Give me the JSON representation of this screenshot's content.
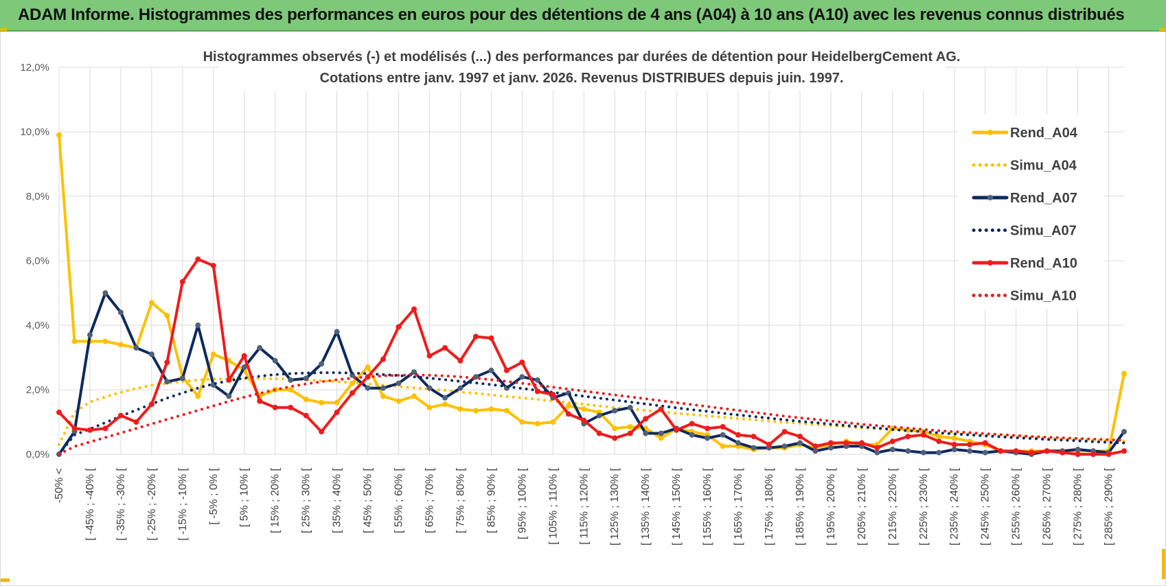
{
  "header": {
    "title": "ADAM Informe. Histogrammes des performances en euros pour des détentions de 4 ans (A04) à 10 ans (A10) avec les revenus connus distribués"
  },
  "chart_data": {
    "type": "line",
    "title": "Histogrammes observés (-) et modélisés (...) des performances par durées de détention pour HeidelbergCement AG.",
    "subtitle": "Cotations entre janv. 1997 et janv. 2026. Revenus DISTRIBUES depuis juin. 1997.",
    "ylim": [
      0,
      12
    ],
    "yticks": [
      "0,0%",
      "2,0%",
      "4,0%",
      "6,0%",
      "8,0%",
      "10,0%",
      "12,0%"
    ],
    "xlabels": [
      "-50% <",
      "[ -45% ; -40% [",
      "[ -35% ; -30% [",
      "[ -25% ; -20% [",
      "[ -15% ; -10% [",
      "[ -5% ; 0% [",
      "[ 5% ; 10% [",
      "[ 15% ; 20% [",
      "[ 25% ; 30% [",
      "[ 35% ; 40% [",
      "[ 45% ; 50% [",
      "[ 55% ; 60% [",
      "[ 65% ; 70% [",
      "[ 75% ; 80% [",
      "[ 85% ; 90% [",
      "[ 95% ; 100% [",
      "[ 105% ; 110% [",
      "[ 115% ; 120% [",
      "[ 125% ; 130% [",
      "[ 135% ; 140% [",
      "[ 145% ; 150% [",
      "[ 155% ; 160% [",
      "[ 165% ; 170% [",
      "[ 175% ; 180% [",
      "[ 185% ; 190% [",
      "[ 195% ; 200% [",
      "[ 205% ; 210% [",
      "[ 215% ; 220% [",
      "[ 225% ; 230% [",
      "[ 235% ; 240% [",
      "[ 245% ; 250% [",
      "[ 255% ; 260% [",
      "[ 265% ; 270% [",
      "[ 275% ; 280% [",
      "[ 285% ; 290% ["
    ],
    "legend_position": "right",
    "series": [
      {
        "name": "Rend_A04",
        "style": "solid",
        "markers": true,
        "color": "#ffc000",
        "values": [
          9.9,
          3.5,
          3.5,
          3.5,
          3.4,
          3.3,
          4.7,
          4.3,
          2.4,
          1.8,
          3.1,
          2.9,
          2.6,
          1.8,
          2.0,
          2.0,
          1.7,
          1.6,
          1.6,
          2.2,
          2.7,
          1.8,
          1.65,
          1.8,
          1.45,
          1.55,
          1.4,
          1.35,
          1.4,
          1.35,
          1.0,
          0.95,
          1.0,
          1.5,
          1.4,
          1.3,
          0.8,
          0.85,
          0.8,
          0.5,
          0.8,
          0.7,
          0.6,
          0.25,
          0.25,
          0.15,
          0.2,
          0.2,
          0.3,
          0.2,
          0.3,
          0.4,
          0.3,
          0.3,
          0.8,
          0.75,
          0.7,
          0.55,
          0.5,
          0.4,
          0.3,
          0.1,
          0.1,
          0.1,
          0.1,
          0.1,
          0.1,
          0.1,
          0.1,
          2.5
        ]
      },
      {
        "name": "Simu_A04",
        "style": "dotted",
        "markers": false,
        "color": "#ffc000",
        "values": [
          0.3,
          1.3,
          1.62,
          1.78,
          1.92,
          2.04,
          2.14,
          2.2,
          2.26,
          2.3,
          2.33,
          2.34,
          2.35,
          2.35,
          2.34,
          2.33,
          2.31,
          2.28,
          2.25,
          2.22,
          2.18,
          2.14,
          2.1,
          2.06,
          2.02,
          1.98,
          1.93,
          1.89,
          1.84,
          1.79,
          1.75,
          1.7,
          1.65,
          1.6,
          1.55,
          1.5,
          1.45,
          1.41,
          1.36,
          1.32,
          1.27,
          1.23,
          1.19,
          1.15,
          1.11,
          1.07,
          1.03,
          0.99,
          0.96,
          0.92,
          0.89,
          0.85,
          0.82,
          0.79,
          0.76,
          0.73,
          0.7,
          0.67,
          0.64,
          0.62,
          0.59,
          0.57,
          0.55,
          0.53,
          0.5,
          0.48,
          0.46,
          0.44,
          0.42,
          0.4
        ]
      },
      {
        "name": "Rend_A07",
        "style": "solid",
        "markers": true,
        "color": "#0d2a5e",
        "values": [
          0.0,
          0.7,
          3.7,
          5.0,
          4.4,
          3.3,
          3.1,
          2.25,
          2.35,
          4.0,
          2.15,
          1.8,
          2.7,
          3.3,
          2.9,
          2.3,
          2.35,
          2.8,
          3.8,
          2.45,
          2.05,
          2.05,
          2.2,
          2.55,
          2.05,
          1.75,
          2.05,
          2.4,
          2.6,
          2.05,
          2.4,
          2.3,
          1.75,
          1.9,
          0.95,
          1.2,
          1.35,
          1.45,
          0.65,
          0.65,
          0.8,
          0.6,
          0.5,
          0.6,
          0.35,
          0.2,
          0.2,
          0.25,
          0.35,
          0.1,
          0.2,
          0.25,
          0.25,
          0.05,
          0.15,
          0.1,
          0.05,
          0.05,
          0.15,
          0.1,
          0.05,
          0.1,
          0.05,
          0.0,
          0.1,
          0.1,
          0.15,
          0.1,
          0.05,
          0.7
        ]
      },
      {
        "name": "Simu_A07",
        "style": "dotted",
        "markers": false,
        "color": "#0d2a5e",
        "values": [
          0.0,
          0.6,
          0.78,
          0.98,
          1.18,
          1.37,
          1.56,
          1.74,
          1.9,
          2.05,
          2.18,
          2.28,
          2.36,
          2.42,
          2.47,
          2.5,
          2.52,
          2.53,
          2.53,
          2.52,
          2.5,
          2.47,
          2.44,
          2.4,
          2.36,
          2.31,
          2.26,
          2.21,
          2.16,
          2.1,
          2.04,
          1.98,
          1.92,
          1.86,
          1.8,
          1.74,
          1.68,
          1.62,
          1.56,
          1.5,
          1.44,
          1.38,
          1.33,
          1.27,
          1.22,
          1.17,
          1.12,
          1.07,
          1.02,
          0.98,
          0.93,
          0.89,
          0.85,
          0.81,
          0.77,
          0.73,
          0.7,
          0.66,
          0.63,
          0.6,
          0.57,
          0.54,
          0.51,
          0.49,
          0.46,
          0.44,
          0.42,
          0.39,
          0.37,
          0.35
        ]
      },
      {
        "name": "Rend_A10",
        "style": "solid",
        "markers": true,
        "color": "#ee1c1c",
        "values": [
          1.3,
          0.8,
          0.75,
          0.8,
          1.2,
          1.0,
          1.55,
          2.85,
          5.35,
          6.05,
          5.85,
          2.3,
          3.05,
          1.65,
          1.45,
          1.45,
          1.2,
          0.7,
          1.3,
          1.9,
          2.4,
          2.95,
          3.95,
          4.5,
          3.05,
          3.3,
          2.9,
          3.65,
          3.6,
          2.6,
          2.85,
          1.95,
          1.85,
          1.25,
          1.05,
          0.65,
          0.5,
          0.65,
          1.1,
          1.4,
          0.75,
          0.95,
          0.8,
          0.85,
          0.6,
          0.55,
          0.3,
          0.7,
          0.55,
          0.25,
          0.35,
          0.35,
          0.35,
          0.2,
          0.4,
          0.55,
          0.6,
          0.4,
          0.3,
          0.3,
          0.35,
          0.1,
          0.1,
          0.05,
          0.1,
          0.05,
          0.0,
          0.0,
          0.0,
          0.1
        ]
      },
      {
        "name": "Simu_A10",
        "style": "dotted",
        "markers": false,
        "color": "#ee1c1c",
        "values": [
          0.0,
          0.24,
          0.38,
          0.52,
          0.66,
          0.8,
          0.94,
          1.08,
          1.22,
          1.36,
          1.5,
          1.64,
          1.77,
          1.89,
          2.0,
          2.1,
          2.18,
          2.25,
          2.31,
          2.36,
          2.4,
          2.43,
          2.45,
          2.46,
          2.45,
          2.43,
          2.4,
          2.36,
          2.31,
          2.26,
          2.2,
          2.14,
          2.08,
          2.02,
          1.96,
          1.9,
          1.84,
          1.78,
          1.72,
          1.66,
          1.6,
          1.54,
          1.48,
          1.42,
          1.36,
          1.3,
          1.24,
          1.18,
          1.13,
          1.08,
          1.03,
          0.98,
          0.93,
          0.89,
          0.85,
          0.81,
          0.77,
          0.73,
          0.7,
          0.67,
          0.64,
          0.61,
          0.58,
          0.55,
          0.53,
          0.51,
          0.49,
          0.47,
          0.45,
          0.43
        ]
      }
    ]
  }
}
